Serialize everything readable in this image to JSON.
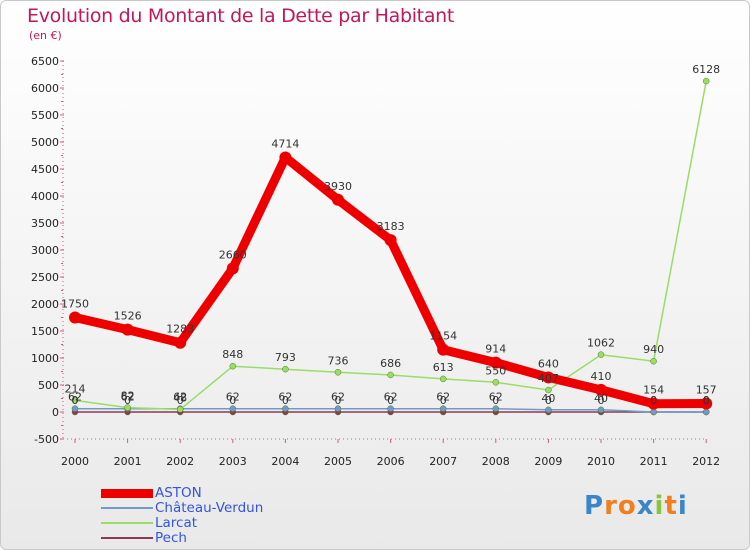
{
  "chart_data": {
    "type": "line",
    "title": "Evolution du Montant de la Dette par Habitant",
    "subtitle": "(en €)",
    "x": [
      "2000",
      "2001",
      "2002",
      "2003",
      "2004",
      "2005",
      "2006",
      "2007",
      "2008",
      "2009",
      "2010",
      "2011",
      "2012"
    ],
    "ylim": [
      -500,
      6500
    ],
    "yticks": [
      -500,
      0,
      500,
      1000,
      1500,
      2000,
      2500,
      3000,
      3500,
      4000,
      4500,
      5000,
      5500,
      6000,
      6500
    ],
    "grid": false,
    "legend_position": "bottom-left",
    "series": [
      {
        "name": "ASTON",
        "color": "#ee0000",
        "values": [
          1750,
          1526,
          1283,
          2660,
          4714,
          3930,
          3183,
          1154,
          914,
          640,
          410,
          154,
          157
        ],
        "labels": [
          "1750",
          "1526",
          "1283",
          "2660",
          "4714",
          "3930",
          "3183",
          "1154",
          "914",
          "640",
          "410",
          "154",
          "157"
        ]
      },
      {
        "name": "Château-Verdun",
        "color": "#6f9bcc",
        "values": [
          62,
          62,
          62,
          62,
          62,
          62,
          62,
          62,
          62,
          40,
          40,
          0,
          0
        ],
        "labels": [
          "62",
          "62",
          "62",
          "62",
          "62",
          "62",
          "62",
          "62",
          "62",
          "40",
          "40",
          "0",
          "0"
        ]
      },
      {
        "name": "Larcat",
        "color": "#99dd66",
        "values": [
          214,
          82,
          48,
          848,
          793,
          736,
          686,
          613,
          550,
          407,
          1062,
          940,
          6128
        ],
        "labels": [
          "214",
          "82",
          "48",
          "848",
          "793",
          "736",
          "686",
          "613",
          "550",
          "407",
          "1062",
          "940",
          "6128"
        ]
      },
      {
        "name": "Pech",
        "color": "#8b3a52",
        "values": [
          0,
          0,
          0,
          0,
          0,
          0,
          0,
          0,
          0,
          0,
          0,
          0,
          0
        ],
        "labels": [
          "0",
          "0",
          "0",
          "0",
          "0",
          "0",
          "0",
          "0",
          "0",
          "0",
          "0",
          "0",
          "0"
        ]
      }
    ]
  },
  "branding": {
    "logo_letters": [
      "P",
      "r",
      "o",
      "x",
      "i",
      "t",
      "i"
    ],
    "logo_colors": [
      "#3a86c8",
      "#f07f1e",
      "#f07f1e",
      "#3a86c8",
      "#8ac540",
      "#f07f1e",
      "#3a86c8"
    ]
  }
}
